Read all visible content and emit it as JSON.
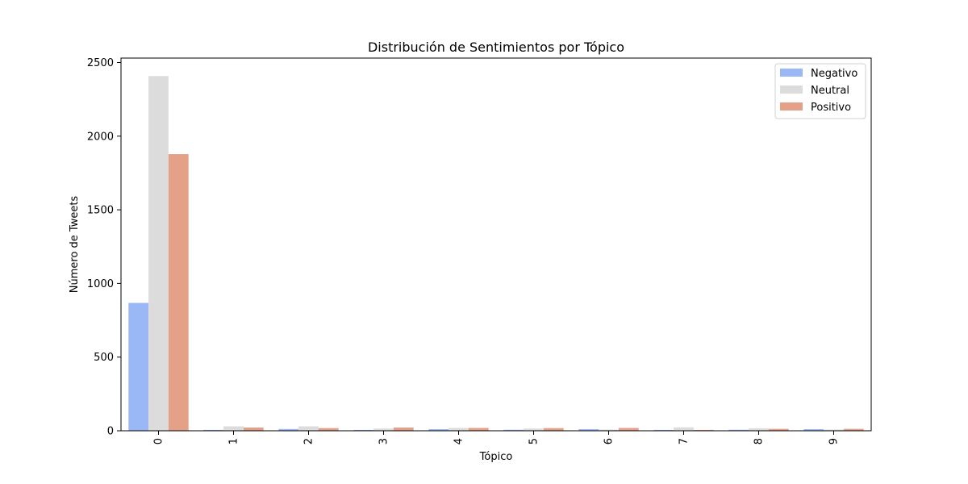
{
  "chart_data": {
    "type": "bar",
    "title": "Distribución de Sentimientos por Tópico",
    "xlabel": "Tópico",
    "ylabel": "Número de Tweets",
    "categories": [
      "0",
      "1",
      "2",
      "3",
      "4",
      "5",
      "6",
      "7",
      "8",
      "9"
    ],
    "series": [
      {
        "name": "Negativo",
        "color": "#9ab8f5",
        "values": [
          868,
          6,
          12,
          6,
          11,
          7,
          11,
          6,
          7,
          11
        ]
      },
      {
        "name": "Neutral",
        "color": "#dcdcdc",
        "values": [
          2408,
          30,
          30,
          15,
          19,
          15,
          8,
          23,
          17,
          8
        ]
      },
      {
        "name": "Positivo",
        "color": "#e5a188",
        "values": [
          1878,
          22,
          18,
          22,
          19,
          18,
          19,
          6,
          13,
          13
        ]
      }
    ],
    "ylim": [
      0,
      2530
    ],
    "yticks": [
      0,
      500,
      1000,
      1500,
      2000,
      2500
    ],
    "grid": false,
    "legend_position": "top-right",
    "xtick_rotation": "vertical"
  }
}
